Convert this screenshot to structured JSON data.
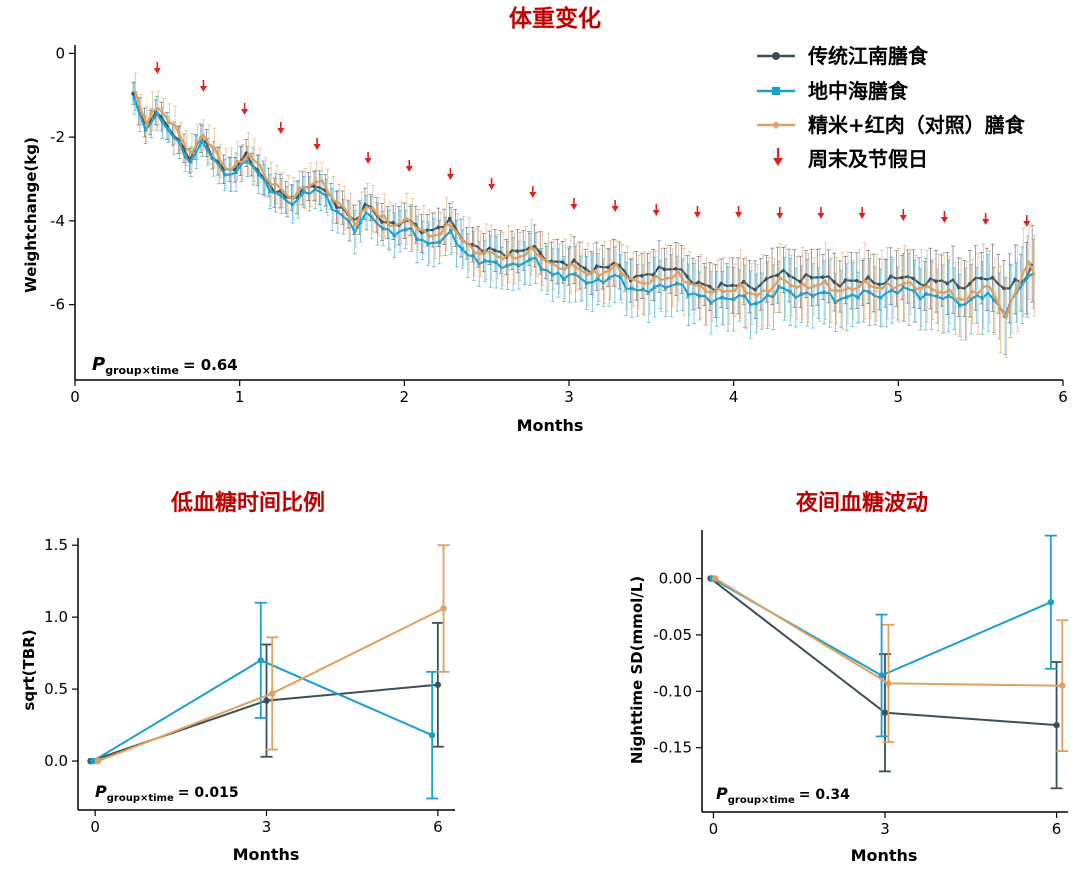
{
  "colors": {
    "jiangnan": "#3d4f58",
    "mediterranean": "#1aa0cf",
    "control": "#e0a060",
    "arrow": "#e02020",
    "title": "#c00000",
    "axis": "#000000"
  },
  "legend": [
    {
      "label": "传统江南膳食",
      "color": "#3d4f58",
      "marker": "circle"
    },
    {
      "label": "地中海膳食",
      "color": "#1aa0cf",
      "marker": "square"
    },
    {
      "label": "精米+红肉（对照）膳食",
      "color": "#e0a060",
      "marker": "diamond"
    },
    {
      "label": "周末及节假日",
      "color": "#e02020",
      "marker": "arrow"
    }
  ],
  "chart_data": [
    {
      "type": "line",
      "title": "体重变化",
      "xlabel": "Months",
      "ylabel": "Weightchange(kg)",
      "xlim": [
        0,
        6
      ],
      "ylim": [
        -7.8,
        0.2
      ],
      "xticks": [
        0,
        1,
        2,
        3,
        4,
        5,
        6
      ],
      "yticks": [
        0,
        -2,
        -4,
        -6
      ],
      "p_label": "P",
      "p_sub": "group×time",
      "p_value": "= 0.64",
      "weekend_arrows_x": [
        0.5,
        0.78,
        1.03,
        1.25,
        1.47,
        1.78,
        2.03,
        2.28,
        2.53,
        2.78,
        3.03,
        3.28,
        3.53,
        3.78,
        4.03,
        4.28,
        4.53,
        4.78,
        5.03,
        5.28,
        5.53,
        5.78
      ],
      "series_anchor_x": [
        0.36,
        0.42,
        0.5,
        0.55,
        0.7,
        0.78,
        0.9,
        1.0,
        1.05,
        1.15,
        1.3,
        1.47,
        1.55,
        1.7,
        1.78,
        1.9,
        2.03,
        2.15,
        2.28,
        2.4,
        2.53,
        2.65,
        2.78,
        2.9,
        3.03,
        3.15,
        3.28,
        3.4,
        3.53,
        3.65,
        3.78,
        3.9,
        4.03,
        4.15,
        4.28,
        4.4,
        4.53,
        4.65,
        4.78,
        4.9,
        5.03,
        5.15,
        5.28,
        5.4,
        5.53,
        5.65,
        5.78,
        5.82
      ],
      "series": [
        {
          "name": "传统江南膳食",
          "color": "#3d4f58",
          "marker": "circle",
          "values": [
            -1.0,
            -1.7,
            -1.45,
            -1.6,
            -2.5,
            -2.0,
            -2.8,
            -2.7,
            -2.4,
            -3.0,
            -3.5,
            -3.1,
            -3.4,
            -4.0,
            -3.6,
            -4.1,
            -4.0,
            -4.3,
            -4.0,
            -4.6,
            -4.7,
            -4.8,
            -4.6,
            -5.0,
            -5.0,
            -5.2,
            -5.0,
            -5.4,
            -5.2,
            -5.1,
            -5.5,
            -5.6,
            -5.5,
            -5.6,
            -5.2,
            -5.4,
            -5.3,
            -5.5,
            -5.4,
            -5.5,
            -5.3,
            -5.5,
            -5.4,
            -5.6,
            -5.3,
            -5.6,
            -5.4,
            -5.0
          ],
          "err": [
            0.3,
            0.3,
            0.3,
            0.3,
            0.3,
            0.3,
            0.3,
            0.3,
            0.3,
            0.35,
            0.35,
            0.35,
            0.35,
            0.35,
            0.35,
            0.4,
            0.4,
            0.4,
            0.4,
            0.4,
            0.45,
            0.45,
            0.45,
            0.45,
            0.5,
            0.5,
            0.5,
            0.5,
            0.55,
            0.55,
            0.55,
            0.55,
            0.6,
            0.6,
            0.6,
            0.6,
            0.6,
            0.6,
            0.6,
            0.6,
            0.6,
            0.6,
            0.7,
            0.7,
            0.7,
            0.7,
            0.8,
            0.8
          ]
        },
        {
          "name": "地中海膳食",
          "color": "#1aa0cf",
          "marker": "square",
          "values": [
            -1.1,
            -1.8,
            -1.5,
            -1.7,
            -2.6,
            -2.1,
            -2.9,
            -2.8,
            -2.5,
            -3.1,
            -3.6,
            -3.2,
            -3.6,
            -4.2,
            -3.8,
            -4.3,
            -4.2,
            -4.6,
            -4.3,
            -4.9,
            -5.0,
            -5.1,
            -4.9,
            -5.3,
            -5.3,
            -5.5,
            -5.3,
            -5.7,
            -5.6,
            -5.5,
            -5.8,
            -5.9,
            -5.8,
            -6.0,
            -5.6,
            -5.8,
            -5.7,
            -5.9,
            -5.7,
            -5.8,
            -5.6,
            -5.8,
            -5.8,
            -6.0,
            -5.7,
            -6.2,
            -5.3,
            -5.3
          ],
          "err": [
            0.35,
            0.35,
            0.35,
            0.35,
            0.35,
            0.35,
            0.4,
            0.4,
            0.4,
            0.4,
            0.4,
            0.4,
            0.45,
            0.45,
            0.45,
            0.45,
            0.5,
            0.5,
            0.5,
            0.5,
            0.55,
            0.55,
            0.55,
            0.55,
            0.6,
            0.6,
            0.6,
            0.6,
            0.65,
            0.65,
            0.65,
            0.65,
            0.7,
            0.7,
            0.7,
            0.7,
            0.7,
            0.7,
            0.7,
            0.7,
            0.75,
            0.75,
            0.75,
            0.75,
            0.8,
            0.8,
            0.85,
            0.85
          ]
        },
        {
          "name": "精米+红肉（对照）膳食",
          "color": "#e0a060",
          "marker": "diamond",
          "values": [
            -0.95,
            -1.65,
            -1.3,
            -1.5,
            -2.4,
            -1.9,
            -2.75,
            -2.65,
            -2.35,
            -2.95,
            -3.45,
            -3.0,
            -3.4,
            -4.05,
            -3.6,
            -4.1,
            -4.0,
            -4.4,
            -4.1,
            -4.7,
            -4.8,
            -4.9,
            -4.7,
            -5.1,
            -5.1,
            -5.3,
            -5.1,
            -5.5,
            -5.4,
            -5.3,
            -5.6,
            -5.7,
            -5.6,
            -5.8,
            -5.4,
            -5.6,
            -5.5,
            -5.7,
            -5.5,
            -5.6,
            -5.5,
            -5.6,
            -5.7,
            -5.9,
            -5.5,
            -6.3,
            -4.9,
            -5.4
          ],
          "err": [
            0.4,
            0.4,
            0.4,
            0.4,
            0.4,
            0.4,
            0.45,
            0.45,
            0.45,
            0.45,
            0.45,
            0.45,
            0.5,
            0.5,
            0.5,
            0.5,
            0.55,
            0.55,
            0.55,
            0.55,
            0.6,
            0.6,
            0.6,
            0.6,
            0.65,
            0.65,
            0.65,
            0.65,
            0.7,
            0.7,
            0.7,
            0.7,
            0.75,
            0.75,
            0.75,
            0.75,
            0.8,
            0.8,
            0.8,
            0.8,
            0.8,
            0.8,
            0.85,
            0.85,
            0.9,
            0.9,
            0.95,
            0.95
          ]
        }
      ]
    },
    {
      "type": "line",
      "title": "低血糖时间比例",
      "xlabel": "Months",
      "ylabel": "sqrt(TBR)",
      "xlim": [
        -0.3,
        6.3
      ],
      "ylim": [
        -0.34,
        1.55
      ],
      "xticks": [
        0,
        3,
        6
      ],
      "yticks": [
        0.0,
        0.5,
        1.0,
        1.5
      ],
      "ytick_labels": [
        "0.0",
        "0.5",
        "1.0",
        "1.5"
      ],
      "p_label": "P",
      "p_sub": "group×time",
      "p_value": "= 0.015",
      "x": [
        0,
        3,
        6
      ],
      "series": [
        {
          "name": "传统江南膳食",
          "color": "#3d4f58",
          "values": [
            0.0,
            0.42,
            0.53
          ],
          "err": [
            0.0,
            0.39,
            0.43
          ],
          "dx": [
            -0.08,
            0.0,
            0.0
          ]
        },
        {
          "name": "地中海膳食",
          "color": "#1aa0cf",
          "values": [
            0.0,
            0.7,
            0.18
          ],
          "err": [
            0.0,
            0.4,
            0.44
          ],
          "dx": [
            -0.04,
            -0.1,
            -0.1
          ]
        },
        {
          "name": "精米+红肉（对照）膳食",
          "color": "#e0a060",
          "values": [
            0.0,
            0.47,
            1.06
          ],
          "err": [
            0.0,
            0.39,
            0.44
          ],
          "dx": [
            0.05,
            0.1,
            0.1
          ]
        }
      ]
    },
    {
      "type": "line",
      "title": "夜间血糖波动",
      "xlabel": "Months",
      "ylabel": "Nighttime SD(mmol/L)",
      "xlim": [
        -0.2,
        6.2
      ],
      "ylim": [
        -0.207,
        0.043
      ],
      "xticks": [
        0,
        3,
        6
      ],
      "yticks": [
        0.0,
        -0.05,
        -0.1,
        -0.15
      ],
      "ytick_labels": [
        "0.00",
        "-0.05",
        "-0.10",
        "-0.15"
      ],
      "p_label": "P",
      "p_sub": "group×time",
      "p_value": "= 0.34",
      "x": [
        0,
        3,
        6
      ],
      "series": [
        {
          "name": "传统江南膳食",
          "color": "#3d4f58",
          "values": [
            0.0,
            -0.119,
            -0.13
          ],
          "err": [
            0.0,
            0.052,
            0.056
          ],
          "dx": [
            -0.05,
            0.0,
            0.0
          ]
        },
        {
          "name": "地中海膳食",
          "color": "#1aa0cf",
          "values": [
            0.0,
            -0.086,
            -0.021
          ],
          "err": [
            0.0,
            0.054,
            0.059
          ],
          "dx": [
            -0.02,
            -0.06,
            -0.1
          ]
        },
        {
          "name": "精米+红肉（对照）膳食",
          "color": "#e0a060",
          "values": [
            0.0,
            -0.093,
            -0.095
          ],
          "err": [
            0.0,
            0.052,
            0.058
          ],
          "dx": [
            0.03,
            0.06,
            0.1
          ]
        }
      ]
    }
  ]
}
